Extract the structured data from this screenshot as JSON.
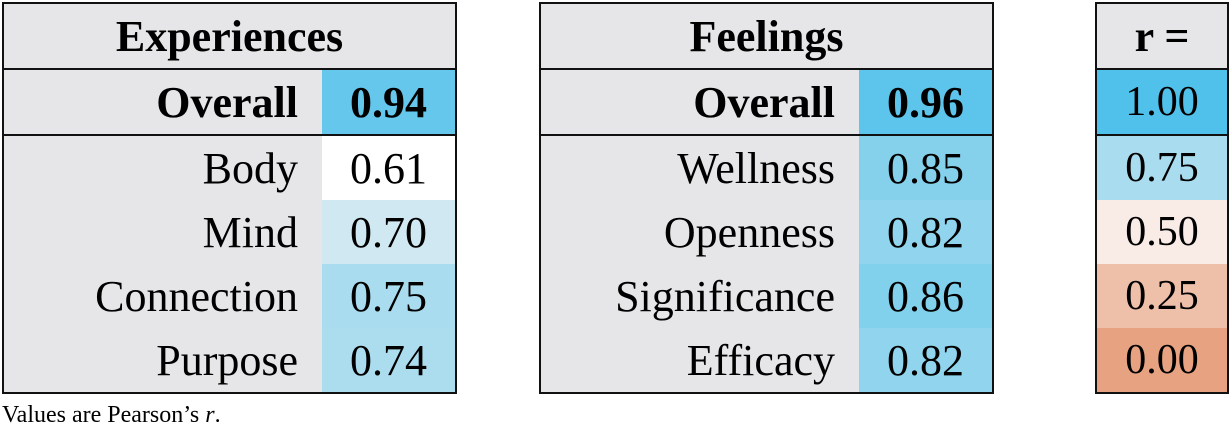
{
  "chart_data": {
    "type": "table",
    "tables": [
      {
        "title": "Experiences",
        "overall": {
          "label": "Overall",
          "value": "0.94"
        },
        "rows": [
          {
            "label": "Body",
            "value": "0.61"
          },
          {
            "label": "Mind",
            "value": "0.70"
          },
          {
            "label": "Connection",
            "value": "0.75"
          },
          {
            "label": "Purpose",
            "value": "0.74"
          }
        ]
      },
      {
        "title": "Feelings",
        "overall": {
          "label": "Overall",
          "value": "0.96"
        },
        "rows": [
          {
            "label": "Wellness",
            "value": "0.85"
          },
          {
            "label": "Openness",
            "value": "0.82"
          },
          {
            "label": "Significance",
            "value": "0.86"
          },
          {
            "label": "Efficacy",
            "value": "0.82"
          }
        ]
      }
    ],
    "legend": {
      "title": "r =",
      "stops": [
        {
          "label": "1.00",
          "value": 1.0,
          "color": "#4fc1ea"
        },
        {
          "label": "0.75",
          "value": 0.75,
          "color": "#a9dcee"
        },
        {
          "label": "0.50",
          "value": 0.5,
          "color": "#f9ebe6"
        },
        {
          "label": "0.25",
          "value": 0.25,
          "color": "#efc0a9"
        },
        {
          "label": "0.00",
          "value": 0.0,
          "color": "#e7a281"
        }
      ]
    },
    "note_prefix": "Values are Pearson’s ",
    "note_stat": "r",
    "note_suffix": "."
  }
}
